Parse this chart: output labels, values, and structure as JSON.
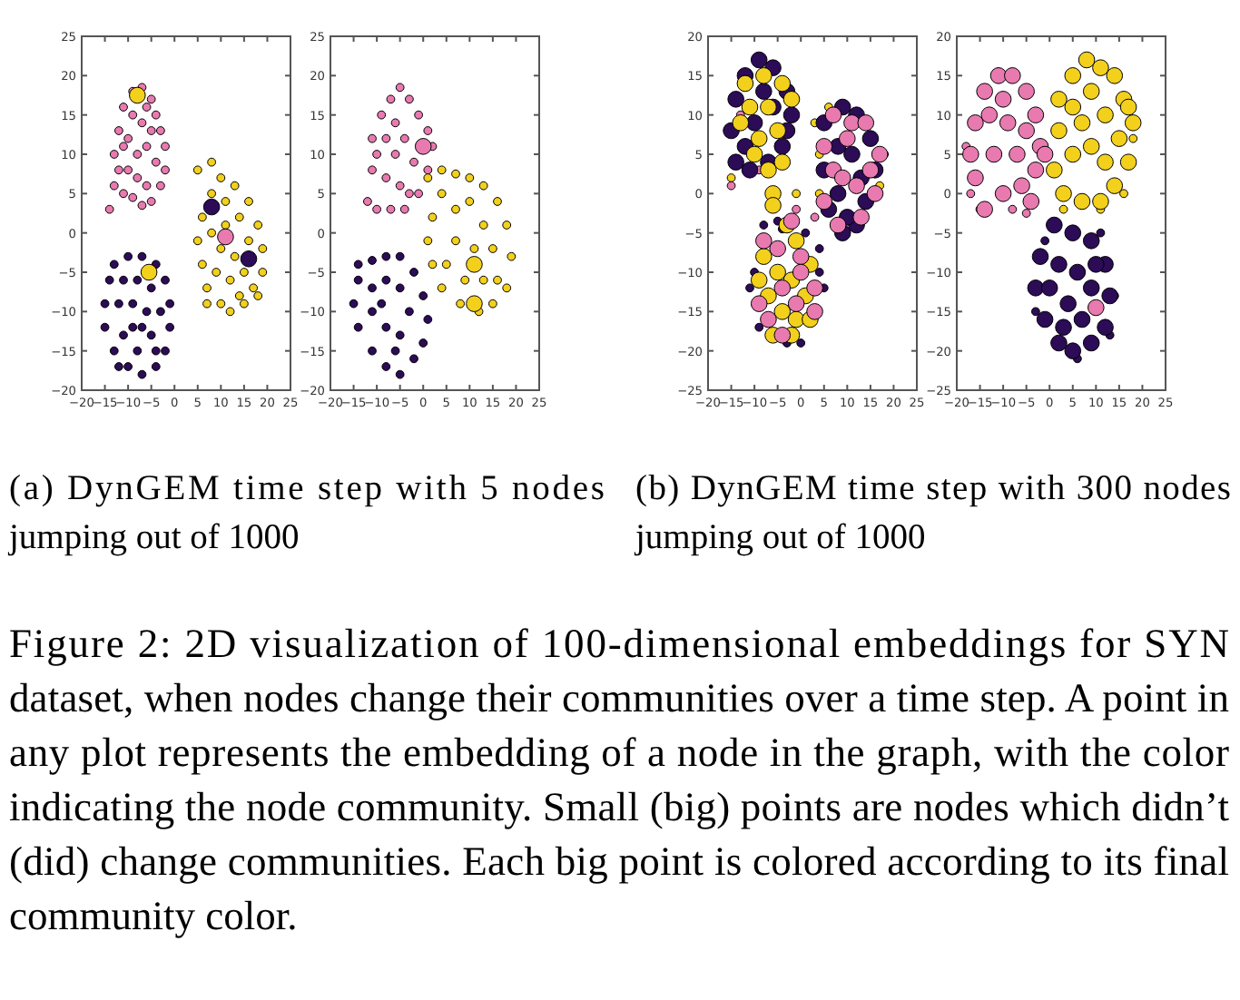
{
  "chart_data": [
    {
      "type": "bubble",
      "xlim": [
        -20,
        25
      ],
      "ylim": [
        -20,
        25
      ],
      "xticks": [
        -20,
        -15,
        -10,
        -5,
        0,
        5,
        10,
        15,
        20,
        25
      ],
      "yticks": [
        -20,
        -15,
        -10,
        -5,
        0,
        5,
        10,
        15,
        20,
        25
      ],
      "series": [
        {
          "color": "#e87ab0",
          "x": [
            -14,
            -13,
            -13,
            -12,
            -11,
            -9,
            -7,
            -5,
            -4,
            -3,
            -2,
            -2,
            -3,
            -5,
            -7,
            -9,
            -11,
            -10,
            -8,
            -6,
            -4,
            -6,
            -8,
            -10,
            -9,
            -7,
            -5,
            -12,
            -6,
            -11
          ],
          "values": [
            3,
            6,
            10,
            13,
            16,
            18,
            18.5,
            17,
            15,
            13,
            11,
            8,
            6,
            4,
            3.5,
            4.5,
            5,
            8,
            7,
            6,
            9,
            11,
            10,
            12,
            15,
            14,
            13,
            8,
            16,
            11
          ],
          "sizes": [
            0.25,
            0.25,
            0.25,
            0.25,
            0.25,
            0.25,
            0.25,
            0.25,
            0.25,
            0.25,
            0.25,
            0.25,
            0.25,
            0.25,
            0.25,
            0.25,
            0.25,
            0.25,
            0.25,
            0.25,
            0.25,
            0.25,
            0.25,
            0.25,
            0.25,
            0.25,
            0.25,
            0.25,
            0.25,
            0.25
          ]
        },
        {
          "color": "#f2d01c",
          "x": [
            5,
            8,
            10,
            13,
            16,
            18,
            19,
            19,
            18,
            15,
            12,
            10,
            7,
            6,
            5,
            6,
            8,
            11,
            14,
            16,
            13,
            10,
            8,
            9,
            12,
            15,
            17,
            11,
            14,
            7
          ],
          "values": [
            8,
            9,
            7,
            6,
            4,
            1,
            -2,
            -5,
            -8,
            -9,
            -10,
            -9,
            -7,
            -4,
            -1,
            2,
            5,
            4,
            2,
            -1,
            -3,
            -2,
            0,
            -5,
            -6,
            -5,
            -7,
            1,
            -8,
            -9
          ],
          "sizes": [
            0.25,
            0.25,
            0.25,
            0.25,
            0.25,
            0.25,
            0.25,
            0.25,
            0.25,
            0.25,
            0.25,
            0.25,
            0.25,
            0.25,
            0.25,
            0.25,
            0.25,
            0.25,
            0.25,
            0.25,
            0.25,
            0.25,
            0.25,
            0.25,
            0.25,
            0.25,
            0.25,
            0.25,
            0.25,
            0.25
          ]
        },
        {
          "color": "#2c0b57",
          "x": [
            -13,
            -10,
            -7,
            -4,
            -2,
            -1,
            -1,
            -2,
            -4,
            -7,
            -10,
            -13,
            -15,
            -15,
            -14,
            -11,
            -8,
            -5,
            -3,
            -5,
            -8,
            -11,
            -12,
            -9,
            -6,
            -9,
            -7,
            -4,
            -12
          ],
          "values": [
            -4,
            -3,
            -3,
            -4,
            -6,
            -9,
            -12,
            -15,
            -17,
            -18,
            -17,
            -15,
            -12,
            -9,
            -6,
            -6,
            -6,
            -7,
            -10,
            -13,
            -15,
            -13,
            -9,
            -9,
            -10,
            -12,
            -12,
            -15,
            -17
          ],
          "sizes": [
            0.25,
            0.25,
            0.25,
            0.25,
            0.25,
            0.25,
            0.25,
            0.25,
            0.25,
            0.25,
            0.25,
            0.25,
            0.25,
            0.25,
            0.25,
            0.25,
            0.25,
            0.25,
            0.25,
            0.25,
            0.25,
            0.25,
            0.25,
            0.25,
            0.25,
            0.25,
            0.25,
            0.25,
            0.25
          ]
        },
        {
          "color": "#f2d01c",
          "x": [
            -8,
            -5.5
          ],
          "values": [
            17.5,
            -5
          ],
          "sizes": [
            1,
            1
          ]
        },
        {
          "color": "#2c0b57",
          "x": [
            8,
            16
          ],
          "values": [
            3.3,
            -3.3
          ],
          "sizes": [
            1,
            1
          ]
        },
        {
          "color": "#e87ab0",
          "x": [
            11
          ],
          "values": [
            -0.5
          ],
          "sizes": [
            1
          ]
        }
      ]
    },
    {
      "type": "bubble",
      "xlim": [
        -20,
        25
      ],
      "ylim": [
        -20,
        25
      ],
      "xticks": [
        -20,
        -15,
        -10,
        -5,
        0,
        5,
        10,
        15,
        20,
        25
      ],
      "yticks": [
        -20,
        -15,
        -10,
        -5,
        0,
        5,
        10,
        15,
        20,
        25
      ],
      "series": [
        {
          "color": "#e87ab0",
          "x": [
            -12,
            -11,
            -11,
            -9,
            -7,
            -5,
            -3,
            -1,
            1,
            2,
            1,
            -1,
            -4,
            -7,
            -10,
            -8,
            -6,
            -4,
            -8,
            -5,
            -2,
            -10,
            -6,
            -3
          ],
          "values": [
            4,
            8,
            12,
            15,
            17,
            18.5,
            17,
            15,
            13,
            11,
            8,
            5,
            3,
            3,
            3,
            7,
            10,
            12,
            12,
            6,
            9,
            10,
            14,
            5
          ],
          "sizes": [
            0.25,
            0.25,
            0.25,
            0.25,
            0.25,
            0.25,
            0.25,
            0.25,
            0.25,
            0.25,
            0.25,
            0.25,
            0.25,
            0.25,
            0.25,
            0.25,
            0.25,
            0.25,
            0.25,
            0.25,
            0.25,
            0.25,
            0.25,
            0.25
          ]
        },
        {
          "color": "#f2d01c",
          "x": [
            1,
            4,
            7,
            10,
            13,
            16,
            18,
            19,
            18,
            15,
            12,
            8,
            4,
            2,
            1,
            2,
            4,
            7,
            10,
            13,
            15,
            11,
            7,
            5,
            9,
            13,
            16
          ],
          "values": [
            7,
            8,
            7.5,
            7,
            6,
            4,
            1,
            -3,
            -7,
            -9,
            -10,
            -9,
            -7,
            -4,
            -1,
            2,
            5,
            3,
            4,
            1,
            -2,
            -2,
            -1,
            -4,
            -6,
            -6,
            -6
          ],
          "sizes": [
            0.25,
            0.25,
            0.25,
            0.25,
            0.25,
            0.25,
            0.25,
            0.25,
            0.25,
            0.25,
            0.25,
            0.25,
            0.25,
            0.25,
            0.25,
            0.25,
            0.25,
            0.25,
            0.25,
            0.25,
            0.25,
            0.25,
            0.25,
            0.25,
            0.25,
            0.25,
            0.25
          ]
        },
        {
          "color": "#2c0b57",
          "x": [
            -14,
            -11,
            -8,
            -5,
            -2,
            0,
            1,
            0,
            -2,
            -5,
            -8,
            -11,
            -14,
            -15,
            -14,
            -11,
            -8,
            -5,
            -3,
            -5,
            -8,
            -11,
            -9,
            -6
          ],
          "values": [
            -4,
            -3.5,
            -3,
            -3,
            -5,
            -8,
            -11,
            -14,
            -16,
            -18,
            -17,
            -15,
            -12,
            -9,
            -6,
            -7,
            -6,
            -7,
            -10,
            -13,
            -12,
            -10,
            -9,
            -15
          ],
          "sizes": [
            0.25,
            0.25,
            0.25,
            0.25,
            0.25,
            0.25,
            0.25,
            0.25,
            0.25,
            0.25,
            0.25,
            0.25,
            0.25,
            0.25,
            0.25,
            0.25,
            0.25,
            0.25,
            0.25,
            0.25,
            0.25,
            0.25,
            0.25,
            0.25
          ]
        },
        {
          "color": "#e87ab0",
          "x": [
            0
          ],
          "values": [
            11
          ],
          "sizes": [
            1
          ]
        },
        {
          "color": "#f2d01c",
          "x": [
            11,
            11
          ],
          "values": [
            -4,
            -9
          ],
          "sizes": [
            1,
            1
          ]
        }
      ],
      "annotations": [
        "(a) DynGEM time step with 5 nodes jumping out of 1000"
      ]
    },
    {
      "type": "bubble",
      "xlim": [
        -20,
        25
      ],
      "ylim": [
        -25,
        20
      ],
      "xticks": [
        -20,
        -15,
        -10,
        -5,
        0,
        5,
        10,
        15,
        20,
        25
      ],
      "yticks": [
        -25,
        -20,
        -15,
        -10,
        -5,
        0,
        5,
        10,
        15,
        20
      ],
      "series": [
        {
          "color": "#2c0b57",
          "x": [
            -10,
            4,
            5,
            -3,
            0,
            -9,
            -4,
            1,
            -11,
            4,
            -5,
            -8
          ],
          "values": [
            -10,
            -10,
            -12,
            -19,
            -19,
            -17,
            -4.5,
            -5,
            -12,
            -7,
            -3.5,
            -4
          ],
          "sizes": [
            0.25,
            0.25,
            0.25,
            0.25,
            0.25,
            0.25,
            0.25,
            0.25,
            0.25,
            0.25,
            0.25,
            0.25
          ]
        },
        {
          "color": "#f2d01c",
          "x": [
            4,
            3,
            17,
            18,
            -1,
            -15,
            4,
            6
          ],
          "values": [
            5,
            9,
            1,
            5,
            0,
            2,
            0,
            11
          ],
          "sizes": [
            0.25,
            0.25,
            0.25,
            0.25,
            0.25,
            0.25,
            0.25,
            0.25
          ]
        },
        {
          "color": "#e87ab0",
          "x": [
            -9,
            -15,
            3,
            -1,
            -13
          ],
          "values": [
            3,
            1,
            -3,
            -2,
            10
          ],
          "sizes": [
            0.25,
            0.25,
            0.25,
            0.25,
            0.25
          ]
        },
        {
          "color": "#2c0b57",
          "x": [
            -14,
            -15,
            -12,
            -9,
            -6,
            -3,
            -2,
            -4,
            -7,
            -11,
            -14,
            -10,
            -6,
            -8,
            -12,
            -3,
            5,
            9,
            12,
            15,
            16,
            14,
            12,
            9,
            6,
            5,
            8,
            11,
            13,
            8,
            10
          ],
          "values": [
            12,
            8,
            15,
            17,
            16,
            13,
            10,
            6,
            4,
            3,
            4,
            9,
            11,
            13,
            6,
            8,
            9,
            11,
            10,
            7,
            3,
            -1,
            -4,
            -5,
            -2,
            3,
            6,
            5,
            2,
            0,
            -3
          ],
          "sizes": [
            1,
            1,
            1,
            1,
            1,
            1,
            1,
            1,
            1,
            1,
            1,
            1,
            1,
            1,
            1,
            1,
            1,
            1,
            1,
            1,
            1,
            1,
            1,
            1,
            1,
            1,
            1,
            1,
            1,
            1,
            1
          ]
        },
        {
          "color": "#f2d01c",
          "x": [
            -12,
            -8,
            -4,
            -2,
            -7,
            -11,
            -5,
            -9,
            -13,
            -4,
            -7,
            -10,
            -6,
            -6,
            -3,
            -1,
            2,
            -8,
            -5,
            -2,
            1,
            -7,
            -4,
            -1,
            2,
            -6,
            -2,
            -9
          ],
          "values": [
            14,
            15,
            14,
            12,
            11,
            11,
            8,
            7,
            9,
            4,
            3,
            5,
            0,
            -1.5,
            -4,
            -6,
            -9,
            -8,
            -10,
            -11,
            -13,
            -13,
            -15,
            -16,
            -16,
            -18,
            -18,
            -11
          ],
          "sizes": [
            1,
            1,
            1,
            1,
            1,
            1,
            1,
            1,
            1,
            1,
            1,
            1,
            1,
            1,
            1,
            1,
            1,
            1,
            1,
            1,
            1,
            1,
            1,
            1,
            1,
            1,
            1,
            1
          ]
        },
        {
          "color": "#e87ab0",
          "x": [
            7,
            11,
            14,
            17,
            16,
            13,
            8,
            5,
            5,
            7,
            10,
            12,
            9,
            15,
            -2,
            -8,
            0,
            3,
            -9,
            -4,
            -7,
            -1,
            3,
            -4,
            -5,
            0
          ],
          "values": [
            10,
            9,
            9,
            5,
            0,
            -3,
            -4,
            -1,
            6,
            3,
            7,
            1,
            2,
            3,
            -3.5,
            -6,
            -8,
            -12,
            -14,
            -12,
            -16,
            -14,
            -15,
            -18,
            -7,
            -10
          ],
          "sizes": [
            1,
            1,
            1,
            1,
            1,
            1,
            1,
            1,
            1,
            1,
            1,
            1,
            1,
            1,
            1,
            1,
            1,
            1,
            1,
            1,
            1,
            1,
            1,
            1,
            1,
            1
          ]
        }
      ]
    },
    {
      "type": "bubble",
      "xlim": [
        -20,
        25
      ],
      "ylim": [
        -25,
        20
      ],
      "xticks": [
        -20,
        -15,
        -10,
        -5,
        0,
        5,
        10,
        15,
        20,
        25
      ],
      "yticks": [
        -25,
        -20,
        -15,
        -10,
        -5,
        0,
        5,
        10,
        15,
        20
      ],
      "series": [
        {
          "color": "#2c0b57",
          "x": [
            -3,
            14,
            11,
            -1,
            6,
            13
          ],
          "values": [
            -15,
            -13,
            -5,
            -6,
            -21,
            -18
          ],
          "sizes": [
            0.25,
            0.25,
            0.25,
            0.25,
            0.25,
            0.25
          ]
        },
        {
          "color": "#e87ab0",
          "x": [
            -17,
            -15,
            -8,
            -5,
            -18
          ],
          "values": [
            0,
            -2,
            -2,
            -2.5,
            6
          ],
          "sizes": [
            0.25,
            0.25,
            0.25,
            0.25,
            0.25
          ]
        },
        {
          "color": "#f2d01c",
          "x": [
            18,
            16,
            11,
            3
          ],
          "values": [
            7,
            0,
            -2,
            -2
          ],
          "sizes": [
            0.25,
            0.25,
            0.25,
            0.25
          ]
        },
        {
          "color": "#e87ab0",
          "x": [
            -17,
            -16,
            -14,
            -11,
            -8,
            -5,
            -3,
            -2,
            -3,
            -6,
            -10,
            -14,
            -16,
            -12,
            -9,
            -7,
            -13,
            -5,
            -10,
            -4,
            10,
            -1
          ],
          "values": [
            5,
            9,
            13,
            15,
            15,
            13,
            10,
            6,
            3,
            1,
            0,
            -2,
            2,
            5,
            9,
            5,
            10,
            8,
            12,
            -1,
            -14.5,
            5
          ],
          "sizes": [
            1,
            1,
            1,
            1,
            1,
            1,
            1,
            1,
            1,
            1,
            1,
            1,
            1,
            1,
            1,
            1,
            1,
            1,
            1,
            1,
            1,
            1
          ]
        },
        {
          "color": "#f2d01c",
          "x": [
            2,
            5,
            8,
            11,
            14,
            16,
            18,
            17,
            14,
            11,
            7,
            3,
            1,
            2,
            5,
            9,
            12,
            15,
            9,
            5,
            12,
            7,
            17
          ],
          "values": [
            12,
            15,
            17,
            16,
            15,
            12,
            9,
            4,
            1,
            -1,
            -1,
            0,
            3,
            8,
            11,
            13,
            10,
            7,
            6,
            5,
            4,
            9,
            11
          ],
          "sizes": [
            1,
            1,
            1,
            1,
            1,
            1,
            1,
            1,
            1,
            1,
            1,
            1,
            1,
            1,
            1,
            1,
            1,
            1,
            1,
            1,
            1,
            1,
            1
          ]
        },
        {
          "color": "#2c0b57",
          "x": [
            1,
            5,
            9,
            12,
            13,
            12,
            9,
            5,
            2,
            -1,
            -3,
            -2,
            2,
            6,
            9,
            4,
            7,
            0,
            10,
            3
          ],
          "values": [
            -4,
            -5,
            -6,
            -9,
            -13,
            -17,
            -19,
            -20,
            -19,
            -16,
            -12,
            -8,
            -9,
            -10,
            -12,
            -14,
            -16,
            -12,
            -9,
            -17
          ],
          "sizes": [
            1,
            1,
            1,
            1,
            1,
            1,
            1,
            1,
            1,
            1,
            1,
            1,
            1,
            1,
            1,
            1,
            1,
            1,
            1,
            1
          ]
        }
      ],
      "annotations": [
        "(b) DynGEM time step with 300 nodes jumping out of 1000",
        "Figure 2: 2D visualization of 100-dimensional embeddings for SYN dataset, when nodes change their communities over a time step.  A point in any plot represents the embedding of a node in the graph, with the color indicating the node community. Small (big) points are nodes which didn’t (did) change communities. Each big point is colored according to its final community color."
      ]
    }
  ]
}
